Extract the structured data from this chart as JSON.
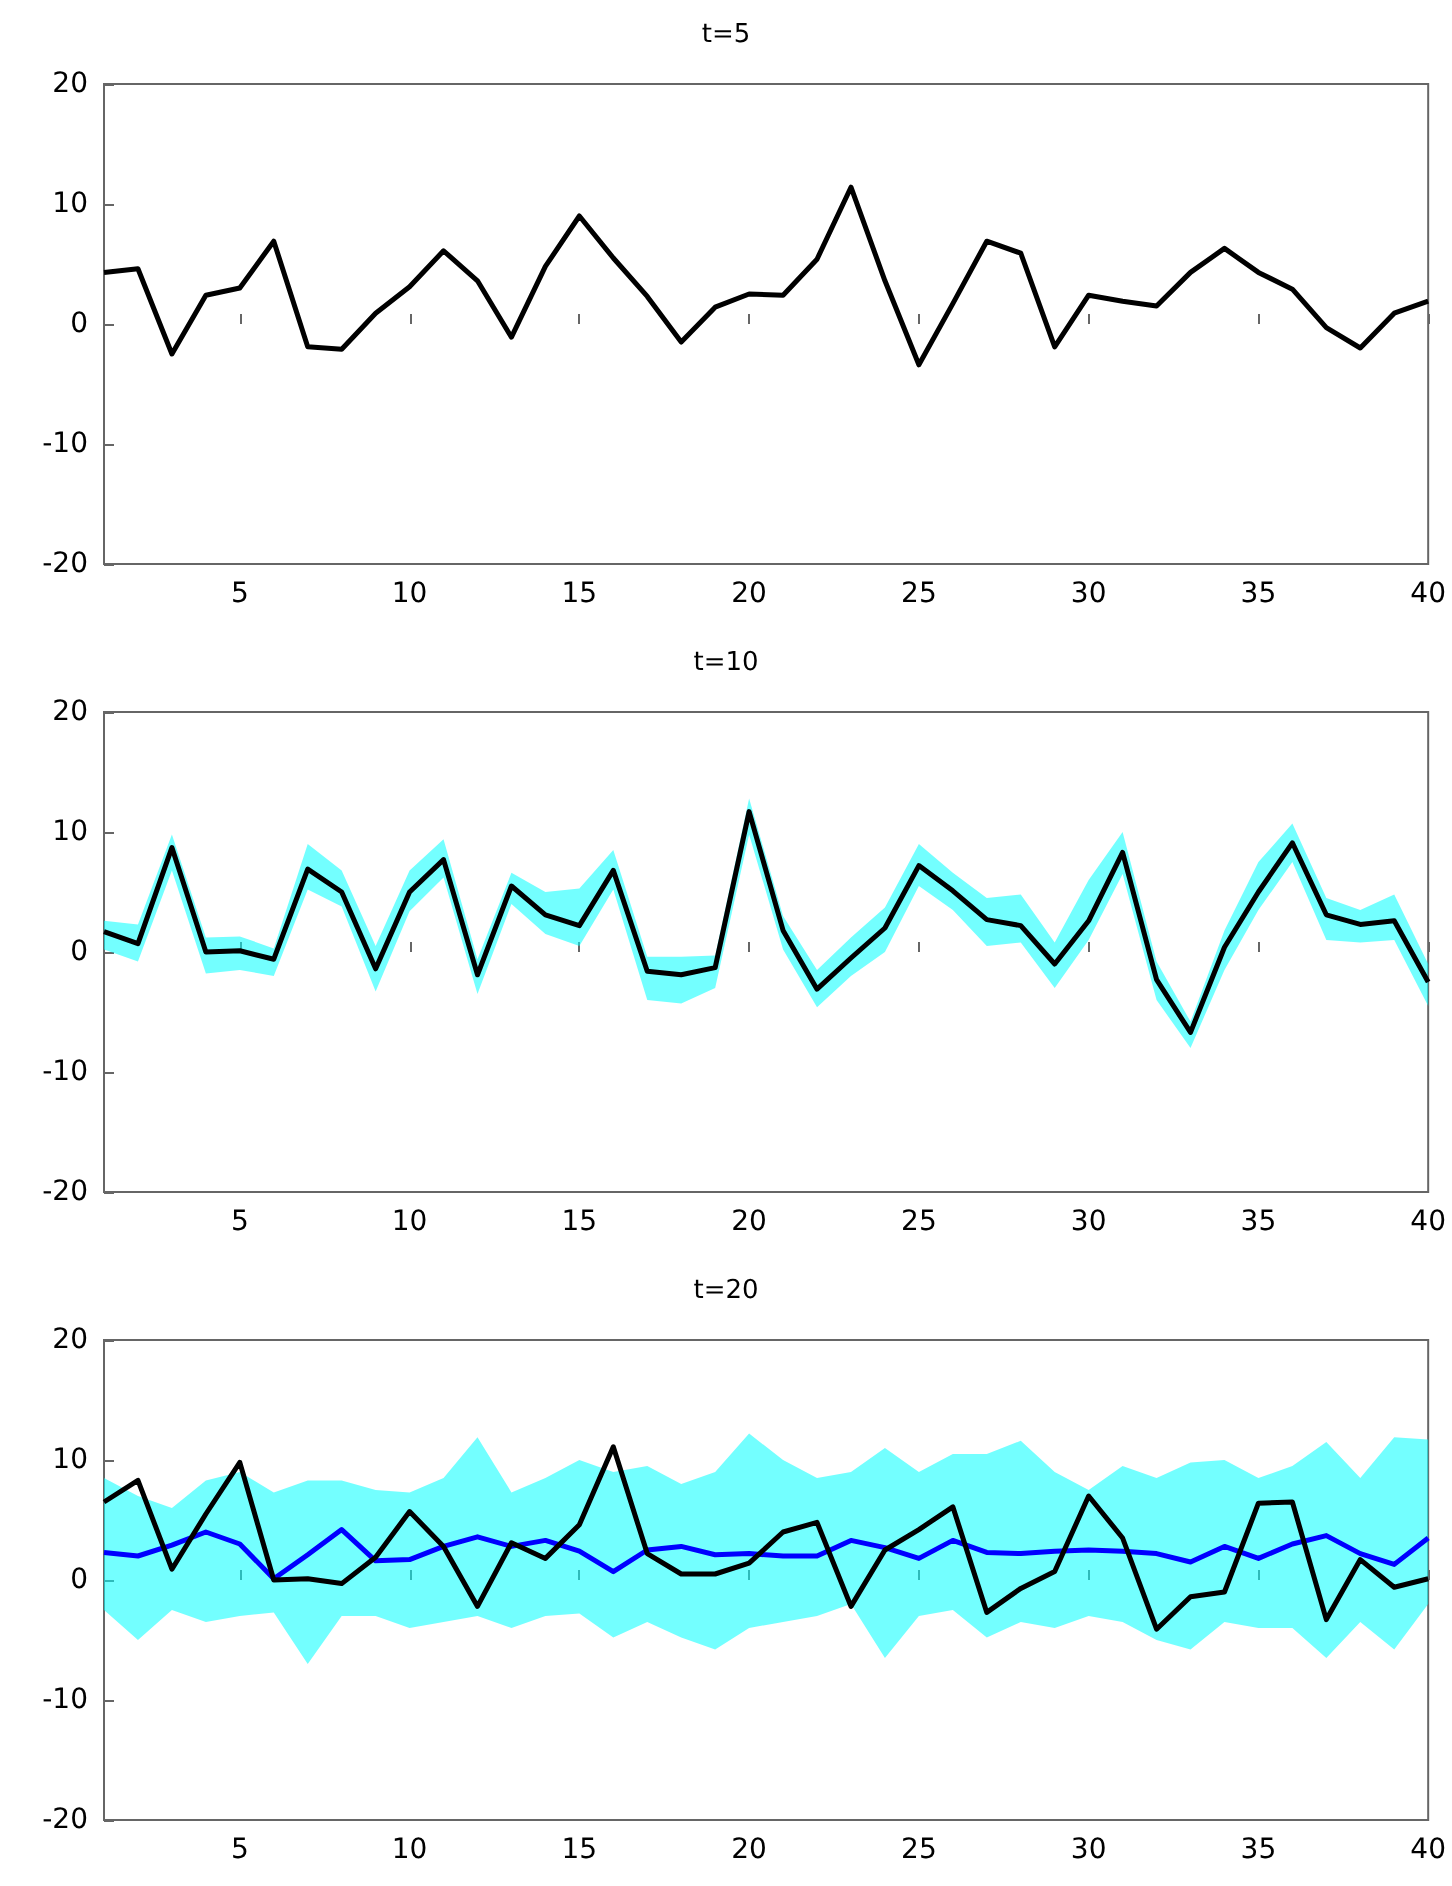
{
  "chart_data": [
    {
      "type": "line",
      "title": "t=5",
      "x": [
        1,
        2,
        3,
        4,
        5,
        6,
        7,
        8,
        9,
        10,
        11,
        12,
        13,
        14,
        15,
        16,
        17,
        18,
        19,
        20,
        21,
        22,
        23,
        24,
        25,
        26,
        27,
        28,
        29,
        30,
        31,
        32,
        33,
        34,
        35,
        36,
        37,
        38,
        39,
        40
      ],
      "xlim": [
        1,
        40
      ],
      "xticks": [
        5,
        10,
        15,
        20,
        25,
        30,
        35,
        40
      ],
      "ylim": [
        -20,
        20
      ],
      "yticks": [
        -20,
        -10,
        0,
        10,
        20
      ],
      "marker": "none",
      "series": [
        {
          "color": "#000000",
          "values": [
            4.3,
            4.6,
            -2.5,
            2.4,
            3.0,
            6.9,
            -1.9,
            -2.1,
            0.9,
            3.1,
            6.1,
            3.6,
            -1.1,
            4.8,
            9.0,
            5.5,
            2.3,
            -1.5,
            1.4,
            2.5,
            2.4,
            5.4,
            11.4,
            3.6,
            -3.4,
            1.7,
            6.9,
            5.9,
            -1.9,
            2.4,
            1.9,
            1.5,
            4.3,
            6.3,
            4.3,
            2.9,
            -0.3,
            -2.0,
            0.9,
            1.9
          ]
        }
      ]
    },
    {
      "type": "line",
      "title": "t=10",
      "x": [
        1,
        2,
        3,
        4,
        5,
        6,
        7,
        8,
        9,
        10,
        11,
        12,
        13,
        14,
        15,
        16,
        17,
        18,
        19,
        20,
        21,
        22,
        23,
        24,
        25,
        26,
        27,
        28,
        29,
        30,
        31,
        32,
        33,
        34,
        35,
        36,
        37,
        38,
        39,
        40
      ],
      "xlim": [
        1,
        40
      ],
      "xticks": [
        5,
        10,
        15,
        20,
        25,
        30,
        35,
        40
      ],
      "ylim": [
        -20,
        20
      ],
      "yticks": [
        -20,
        -10,
        0,
        10,
        20
      ],
      "marker": "none",
      "series": [
        {
          "color": "#000000",
          "values": [
            1.7,
            0.7,
            8.7,
            0,
            0.1,
            -0.6,
            6.9,
            5.0,
            -1.4,
            5.0,
            7.7,
            -1.9,
            5.5,
            3.1,
            2.2,
            6.8,
            -1.6,
            -1.9,
            -1.3,
            11.7,
            1.8,
            -3.1,
            -0.5,
            2.0,
            7.2,
            5.1,
            2.7,
            2.2,
            -1.0,
            2.6,
            8.3,
            -2.3,
            -6.7,
            0.4,
            5.0,
            9.1,
            3.1,
            2.3,
            2.6,
            -2.5
          ],
          "lower": [
            0.2,
            -0.8,
            6.8,
            -1.8,
            -1.5,
            -2.0,
            5.2,
            3.8,
            -3.3,
            3.4,
            6.2,
            -3.5,
            4.0,
            1.5,
            0.5,
            5.2,
            -4.0,
            -4.3,
            -3.0,
            9.8,
            0.2,
            -4.6,
            -2.0,
            0.0,
            5.5,
            3.5,
            0.5,
            0.8,
            -3.0,
            1.0,
            6.5,
            -4.0,
            -8.0,
            -1.5,
            3.5,
            7.5,
            1.0,
            0.8,
            1.0,
            -4.5
          ],
          "upper": [
            2.6,
            2.3,
            9.8,
            1.2,
            1.3,
            0.3,
            9.0,
            6.8,
            0.5,
            6.8,
            9.4,
            -0.6,
            6.6,
            5.0,
            5.3,
            8.5,
            -0.4,
            -0.4,
            -0.3,
            12.8,
            3.0,
            -1.5,
            1.2,
            3.7,
            9.0,
            6.6,
            4.5,
            4.8,
            0.8,
            6.0,
            10.0,
            -0.8,
            -5.8,
            1.8,
            7.5,
            10.7,
            4.5,
            3.5,
            4.8,
            -1.0
          ]
        }
      ]
    },
    {
      "type": "line",
      "title": "t=20",
      "x": [
        1,
        2,
        3,
        4,
        5,
        6,
        7,
        8,
        9,
        10,
        11,
        12,
        13,
        14,
        15,
        16,
        17,
        18,
        19,
        20,
        21,
        22,
        23,
        24,
        25,
        26,
        27,
        28,
        29,
        30,
        31,
        32,
        33,
        34,
        35,
        36,
        37,
        38,
        39,
        40
      ],
      "xlim": [
        1,
        40
      ],
      "xticks": [
        5,
        10,
        15,
        20,
        25,
        30,
        35,
        40
      ],
      "ylim": [
        -20,
        20
      ],
      "yticks": [
        -20,
        -10,
        0,
        10,
        20
      ],
      "marker": "none",
      "series": [
        {
          "color": "#0000ff",
          "values": [
            2.3,
            2.0,
            2.9,
            4.0,
            3.0,
            0.1,
            2.1,
            4.2,
            1.6,
            1.7,
            2.8,
            3.6,
            2.8,
            3.3,
            2.4,
            0.7,
            2.5,
            2.8,
            2.1,
            2.2,
            2.0,
            2.0,
            3.3,
            2.7,
            1.8,
            3.3,
            2.3,
            2.2,
            2.4,
            2.5,
            2.4,
            2.2,
            1.5,
            2.8,
            1.8,
            3.0,
            3.7,
            2.2,
            1.3,
            3.5
          ],
          "lower": [
            -2.5,
            -5,
            -2.5,
            -3.5,
            -3,
            -2.7,
            -7,
            -3,
            -3,
            -4,
            -3.5,
            -3,
            -4,
            -3,
            -2.8,
            -4.8,
            -3.5,
            -4.8,
            -5.8,
            -4,
            -3.5,
            -3,
            -2,
            -6.5,
            -3,
            -2.5,
            -4.8,
            -3.5,
            -4,
            -3,
            -3.5,
            -5,
            -5.8,
            -3.5,
            -4,
            -4,
            -6.5,
            -3.5,
            -5.8,
            -2
          ],
          "upper": [
            8.5,
            7,
            6,
            8.3,
            9,
            7.3,
            8.3,
            8.3,
            7.5,
            7.3,
            8.5,
            11.9,
            7.3,
            8.5,
            10,
            9,
            9.5,
            8,
            9,
            12.2,
            10,
            8.5,
            9,
            11,
            9,
            10.5,
            10.5,
            11.6,
            9,
            7.5,
            9.5,
            8.5,
            9.8,
            10,
            8.5,
            9.5,
            11.5,
            8.5,
            11.9,
            11.7
          ]
        },
        {
          "color": "#000000",
          "values": [
            6.5,
            8.3,
            0.9,
            5.5,
            9.8,
            0,
            0.1,
            -0.3,
            1.9,
            5.7,
            2.8,
            -2.2,
            3.1,
            1.8,
            4.6,
            11.1,
            2.2,
            0.5,
            0.5,
            1.4,
            4.0,
            4.8,
            -2.2,
            2.5,
            4.2,
            6.1,
            -2.7,
            -0.7,
            0.7,
            7.0,
            3.5,
            -4.1,
            -1.4,
            -1.0,
            6.4,
            6.5,
            -3.3,
            1.7,
            -0.6,
            0.1
          ]
        }
      ]
    }
  ]
}
